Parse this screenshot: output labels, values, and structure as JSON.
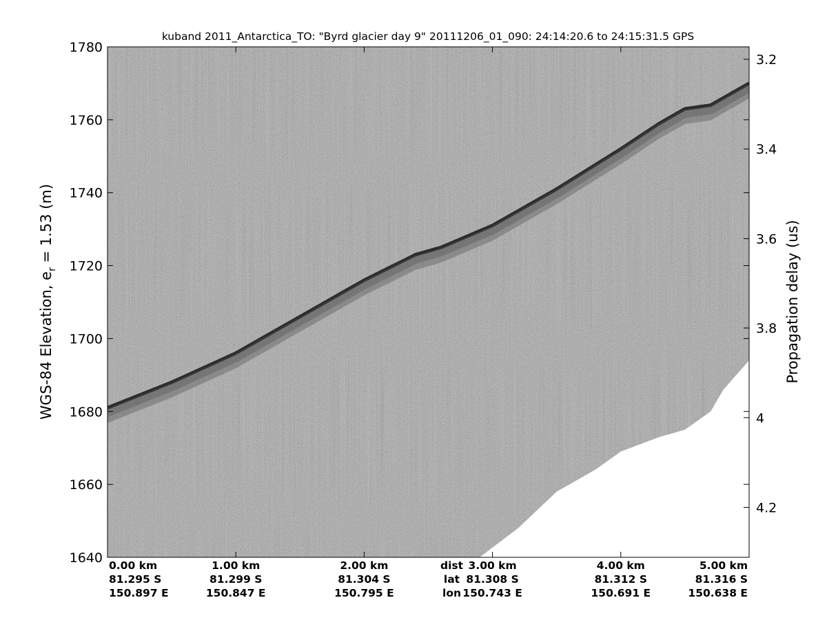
{
  "chart_data": {
    "type": "heatmap",
    "description_type": "radar echogram",
    "title": "kuband 2011_Antarctica_TO: \"Byrd glacier day 9\"  20111206_01_090: 24:14:20.6 to 24:15:31.5 GPS",
    "ylabel_left_main": "WGS-84 Elevation, e",
    "ylabel_left_sub": "r",
    "ylabel_left_tail": " = 1.53 (m)",
    "ylabel_right": "Propagation delay (us)",
    "x_range_km": [
      0,
      5
    ],
    "y_left_range": [
      1640,
      1780
    ],
    "y_left_ticks": [
      1640,
      1660,
      1680,
      1700,
      1720,
      1740,
      1760,
      1780
    ],
    "y_right_ticks": [
      {
        "value": 3.2,
        "at_elevation": 1776.6
      },
      {
        "value": 3.4,
        "at_elevation": 1752.0
      },
      {
        "value": 3.6,
        "at_elevation": 1727.4
      },
      {
        "value": 3.8,
        "at_elevation": 1702.9
      },
      {
        "value": 4.0,
        "at_elevation": 1678.3
      },
      {
        "value": 4.2,
        "at_elevation": 1653.7
      }
    ],
    "x_ticks": [
      {
        "km": 0,
        "dist": "0.00 km",
        "lat": "81.295 S",
        "lon": "150.897 E"
      },
      {
        "km": 1,
        "dist": "1.00 km",
        "lat": "81.299 S",
        "lon": "150.847 E"
      },
      {
        "km": 2,
        "dist": "2.00 km",
        "lat": "81.304 S",
        "lon": "150.795 E"
      },
      {
        "km": 3,
        "dist": "3.00 km",
        "lat": "81.308 S",
        "lon": "150.743 E"
      },
      {
        "km": 4,
        "dist": "4.00 km",
        "lat": "81.312 S",
        "lon": "150.691 E"
      },
      {
        "km": 5,
        "dist": "5.00 km",
        "lat": "81.316 S",
        "lon": "150.638 E"
      }
    ],
    "row_labels": {
      "km": 2.5,
      "dist": "dist",
      "lat": "lat",
      "lon": "lon"
    },
    "surface_elevation": {
      "x_km": [
        0.0,
        0.5,
        1.0,
        1.5,
        2.0,
        2.4,
        2.6,
        3.0,
        3.5,
        4.0,
        4.3,
        4.5,
        4.7,
        5.0
      ],
      "elev_m": [
        1681,
        1688,
        1696,
        1706,
        1716,
        1723,
        1725,
        1731,
        1741,
        1752,
        1759,
        1763,
        1764,
        1770
      ]
    },
    "data_floor_elevation": {
      "x_km": [
        2.9,
        3.2,
        3.5,
        3.8,
        4.0,
        4.3,
        4.5,
        4.7,
        4.8,
        5.0
      ],
      "elev_m": [
        1640,
        1648,
        1658,
        1664,
        1669,
        1673,
        1675,
        1680,
        1686,
        1694
      ]
    },
    "colors": {
      "background_echo": "#8c8c8c",
      "surface_echo": "#303030",
      "no_data": "#ffffff"
    },
    "grid": false
  }
}
